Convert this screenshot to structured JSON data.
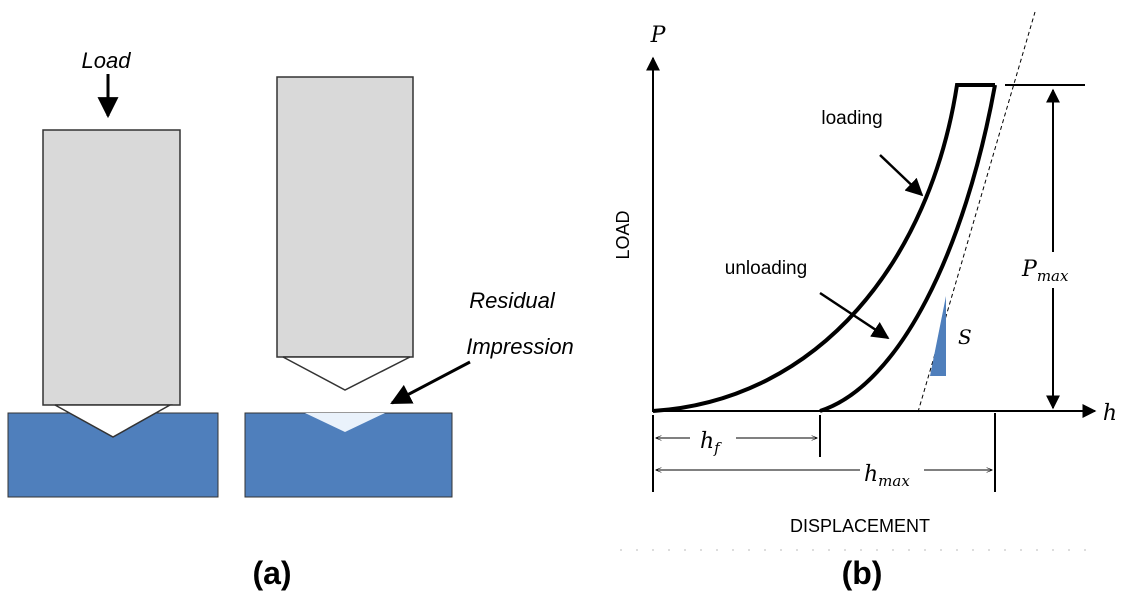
{
  "panel_a": {
    "load_label": "Load",
    "impression_label": [
      "Residual",
      "Impression"
    ],
    "caption": "(a)"
  },
  "panel_b": {
    "y_symbol": "P",
    "y_label": "LOAD",
    "x_symbol": "h",
    "x_label": "DISPLACEMENT",
    "loading_label": "loading",
    "unloading_label": "unloading",
    "p_max": {
      "symbol": "P",
      "subscript": "max"
    },
    "stiffness": "S",
    "h_f": {
      "symbol": "h",
      "subscript": "f"
    },
    "h_max": {
      "symbol": "h",
      "subscript": "max"
    },
    "caption": "(b)"
  }
}
